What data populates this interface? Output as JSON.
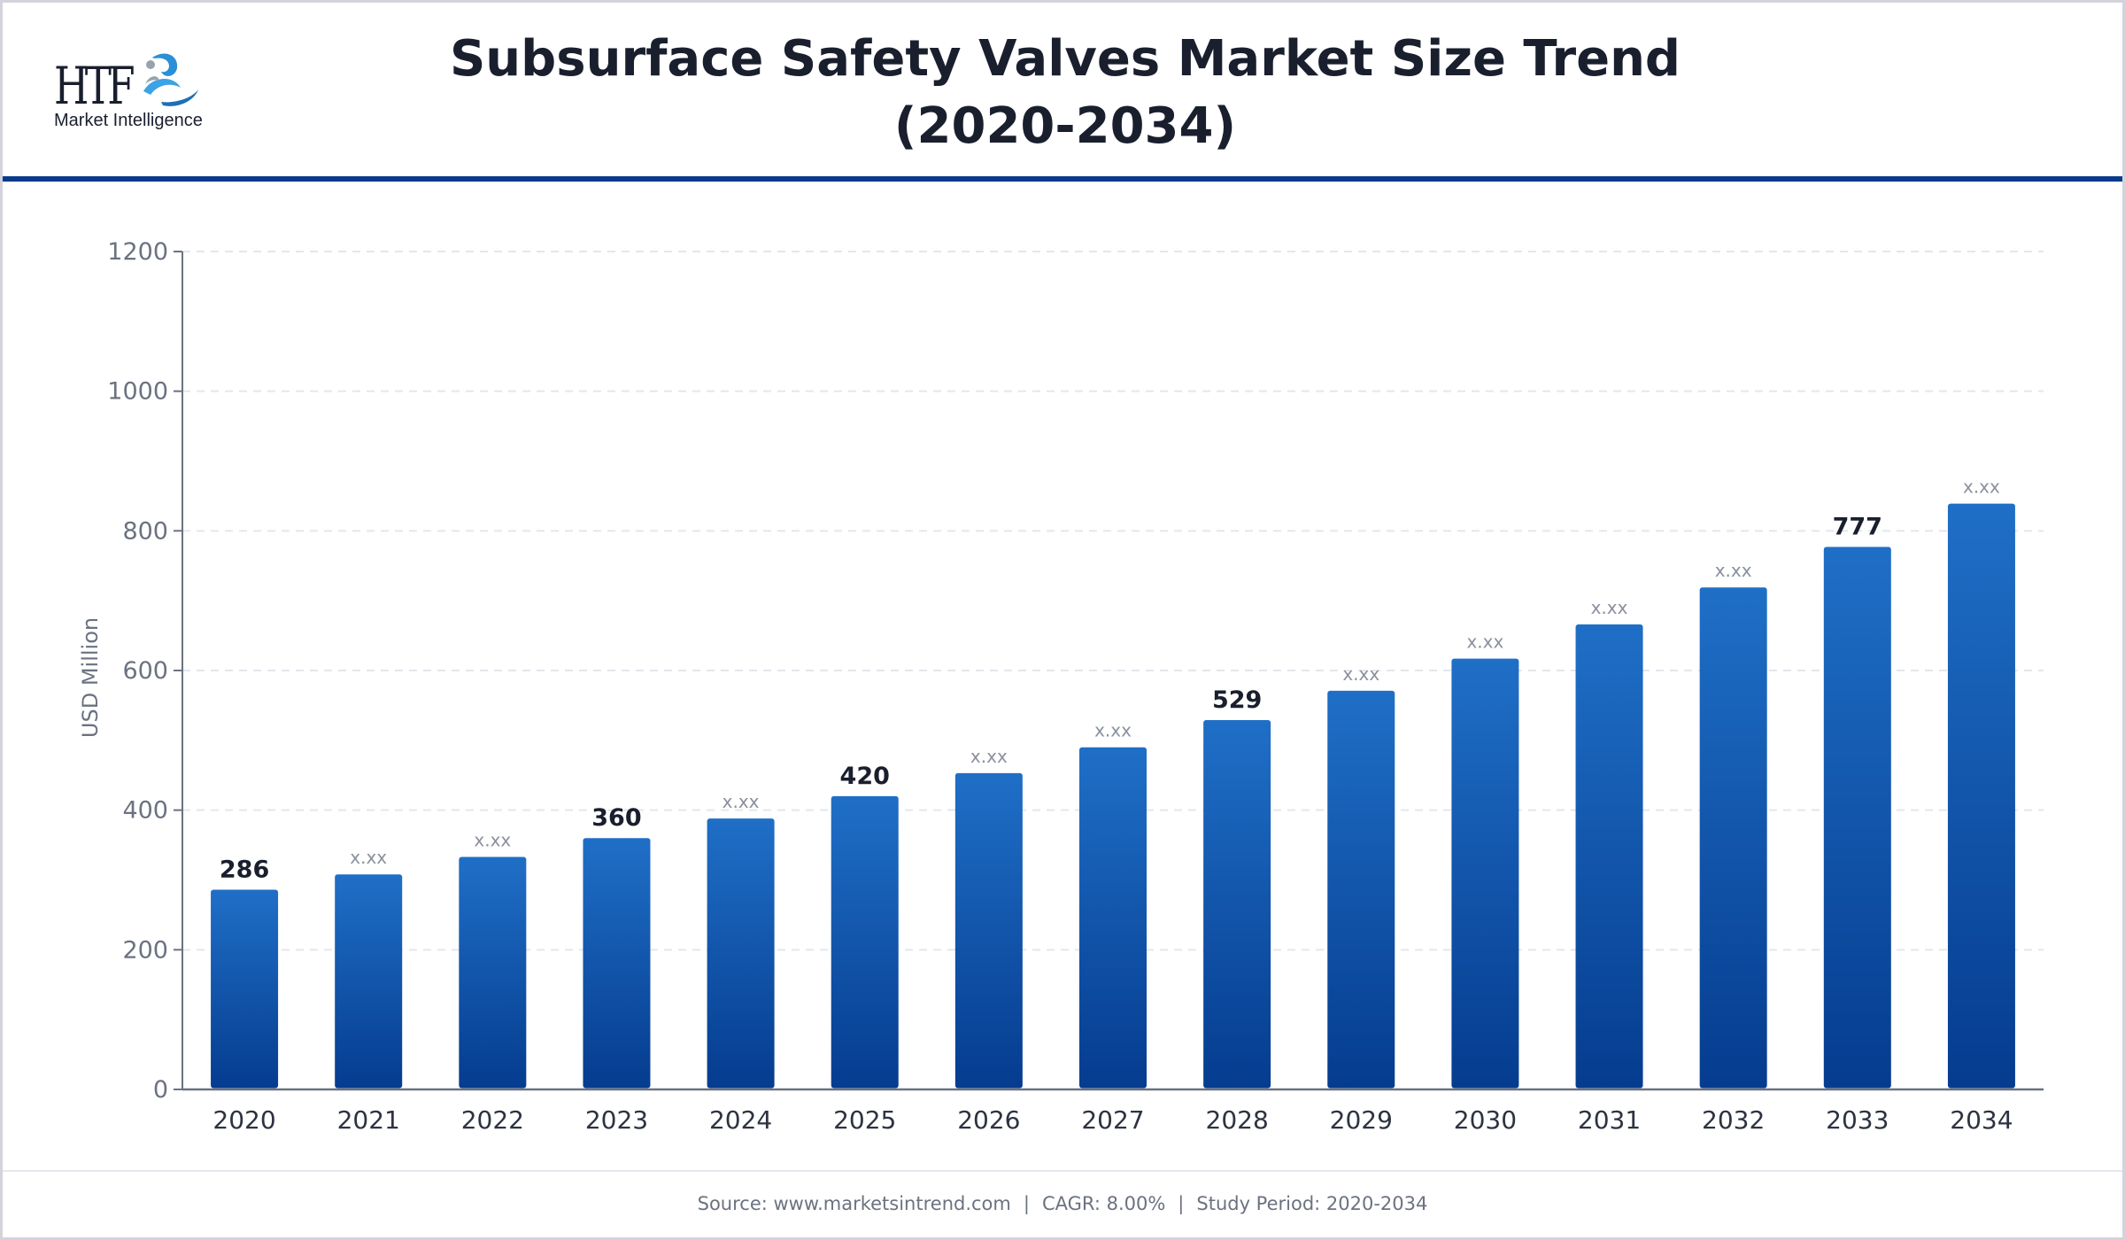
{
  "logo": {
    "mark_text": "HTF",
    "subtitle": "Market Intelligence"
  },
  "header": {
    "title_line1": "Subsurface Safety Valves Market Size Trend",
    "title_line2": "(2020-2034)"
  },
  "colors": {
    "bar_top": "#1f6fc7",
    "bar_bottom": "#053c8f",
    "header_rule": "#0a3a8c",
    "grid": "#e3e6ec",
    "axis": "#6b7280",
    "label_bold": "#1a1f2e",
    "label_placeholder": "#8a909c"
  },
  "chart_data": {
    "type": "bar",
    "title": "Subsurface Safety Valves Market Size Trend (2020-2034)",
    "xlabel": "",
    "ylabel": "USD Million",
    "ylim": [
      0,
      1200
    ],
    "yticks": [
      0,
      200,
      400,
      600,
      800,
      1000,
      1200
    ],
    "grid": true,
    "categories": [
      "2020",
      "2021",
      "2022",
      "2023",
      "2024",
      "2025",
      "2026",
      "2027",
      "2028",
      "2029",
      "2030",
      "2031",
      "2032",
      "2033",
      "2034"
    ],
    "values": [
      286,
      308,
      333,
      360,
      388,
      420,
      453,
      490,
      529,
      571,
      617,
      666,
      719,
      777,
      839
    ],
    "data_labels": [
      "286",
      "x.xx",
      "x.xx",
      "360",
      "x.xx",
      "420",
      "x.xx",
      "x.xx",
      "529",
      "x.xx",
      "x.xx",
      "x.xx",
      "x.xx",
      "777",
      "x.xx"
    ]
  },
  "footer": {
    "source": "Source: www.marketsintrend.com",
    "cagr": "CAGR: 8.00%",
    "period": "Study Period: 2020-2034",
    "separator": "|"
  }
}
